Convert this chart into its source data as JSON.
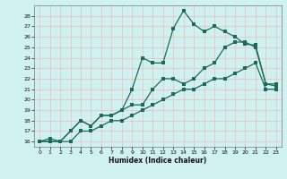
{
  "xlabel": "Humidex (Indice chaleur)",
  "bg_color": "#cff1ef",
  "grid_color": "#f2baba",
  "line_color": "#1a6b5a",
  "xlim": [
    -0.5,
    23.5
  ],
  "ylim": [
    15.5,
    29
  ],
  "yticks": [
    16,
    17,
    18,
    19,
    20,
    21,
    22,
    23,
    24,
    25,
    26,
    27,
    28
  ],
  "xticks": [
    0,
    1,
    2,
    3,
    4,
    5,
    6,
    7,
    8,
    9,
    10,
    11,
    12,
    13,
    14,
    15,
    16,
    17,
    18,
    19,
    20,
    21,
    22,
    23
  ],
  "curve_bottom_x": [
    0,
    1,
    2,
    3,
    4,
    5,
    6,
    7,
    8,
    9,
    10,
    11,
    12,
    13,
    14,
    15,
    16,
    17,
    18,
    19,
    20,
    21,
    22,
    23
  ],
  "curve_bottom_y": [
    16,
    16,
    16,
    16,
    17,
    17,
    17.5,
    18,
    18,
    18.5,
    19,
    19.5,
    20,
    20.5,
    21,
    21,
    21.5,
    22,
    22,
    22.5,
    23,
    23.5,
    21,
    21
  ],
  "curve_mid_x": [
    0,
    2,
    3,
    4,
    5,
    6,
    7,
    8,
    9,
    10,
    11,
    12,
    13,
    14,
    15,
    16,
    17,
    18,
    19,
    20,
    21,
    22,
    23
  ],
  "curve_mid_y": [
    16,
    16,
    17,
    18,
    17.5,
    18.5,
    18.5,
    19,
    19.5,
    19.5,
    21,
    22,
    22,
    21.5,
    22,
    23,
    23.5,
    25,
    25.5,
    25.5,
    25,
    21.5,
    21.5
  ],
  "curve_top_x": [
    0,
    1,
    2,
    3,
    4,
    5,
    6,
    7,
    8,
    9,
    10,
    11,
    12,
    13,
    14,
    15,
    16,
    17,
    18,
    19,
    20,
    21,
    22,
    23
  ],
  "curve_top_y": [
    16,
    16.3,
    16,
    17,
    18,
    17.5,
    18.5,
    18.5,
    19,
    21,
    24,
    23.5,
    23.5,
    26.8,
    28.5,
    27.2,
    26.5,
    27.0,
    26.5,
    26,
    25.3,
    25.2,
    21.5,
    21.3
  ]
}
